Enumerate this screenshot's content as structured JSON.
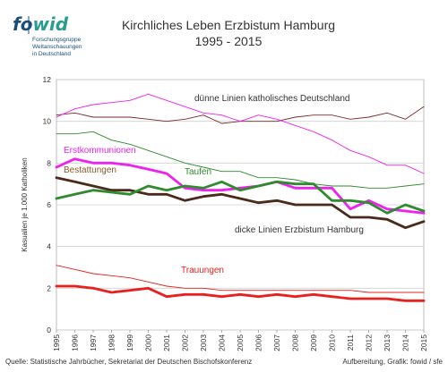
{
  "logo": {
    "word": "fowid",
    "sub1": "Forschungsgruppe",
    "sub2": "Weltanschauungen",
    "sub3": "in Deutschland",
    "color_blue": "#1a4e7a",
    "color_teal": "#2a9d8f"
  },
  "title_line1": "Kirchliches Leben Erzbistum Hamburg",
  "title_line2": "1995 - 2015",
  "source": "Quelle: Statistische Jahrbücher, Sekretariat der Deutschen Bischofskonferenz",
  "credit": "Aufbereitung, Grafik: fowid / sfe",
  "chart_data": {
    "type": "line",
    "x": [
      1995,
      1996,
      1997,
      1998,
      1999,
      2000,
      2001,
      2002,
      2003,
      2004,
      2005,
      2006,
      2007,
      2008,
      2009,
      2010,
      2011,
      2012,
      2013,
      2014,
      2015
    ],
    "ylabel": "Kasualien je 1.000 Katholiken",
    "ylim": [
      0,
      12
    ],
    "yticks": [
      0,
      2,
      4,
      6,
      8,
      10,
      12
    ],
    "grid": true,
    "annotations": [
      {
        "text": "dünne Linien katholisches Deutschland",
        "color": "#333333"
      },
      {
        "text": "Erstkommunionen",
        "color": "#ee22ee"
      },
      {
        "text": "Bestattungen",
        "color": "#8a5a2a"
      },
      {
        "text": "Taufen",
        "color": "#2e8b2e"
      },
      {
        "text": "dicke Linien Erzbistum Hamburg",
        "color": "#333333"
      },
      {
        "text": "Trauungen",
        "color": "#e8201e"
      }
    ],
    "series": [
      {
        "key": "de_bestattungen",
        "color": "#7a2a2a",
        "thick": false,
        "values": [
          10.3,
          10.4,
          10.2,
          10.2,
          10.2,
          10.1,
          10.0,
          10.1,
          10.3,
          9.9,
          10.0,
          10.0,
          10.0,
          10.2,
          10.3,
          10.3,
          10.1,
          10.2,
          10.4,
          10.1,
          10.7
        ]
      },
      {
        "key": "de_erstkommunionen",
        "color": "#ee22ee",
        "thick": false,
        "values": [
          10.2,
          10.6,
          10.8,
          10.9,
          11.0,
          11.3,
          11.0,
          10.7,
          10.4,
          10.3,
          10.0,
          10.3,
          10.1,
          9.8,
          9.5,
          9.1,
          8.6,
          8.3,
          7.9,
          7.9,
          7.5
        ]
      },
      {
        "key": "de_taufen",
        "color": "#2e8b2e",
        "thick": false,
        "values": [
          9.4,
          9.4,
          9.5,
          9.1,
          8.9,
          8.6,
          8.3,
          8.0,
          7.8,
          7.6,
          7.6,
          7.3,
          7.3,
          7.2,
          7.0,
          6.9,
          6.9,
          6.8,
          6.8,
          6.9,
          7.0
        ]
      },
      {
        "key": "de_trauungen",
        "color": "#e8201e",
        "thick": false,
        "values": [
          3.1,
          2.9,
          2.7,
          2.6,
          2.5,
          2.3,
          2.1,
          2.0,
          2.0,
          1.9,
          1.9,
          1.9,
          1.9,
          1.9,
          1.9,
          1.9,
          1.9,
          1.8,
          1.8,
          1.8,
          1.8
        ]
      },
      {
        "key": "hh_bestattungen",
        "color": "#4a2a1a",
        "thick": true,
        "values": [
          7.3,
          7.1,
          6.9,
          6.7,
          6.7,
          6.5,
          6.5,
          6.2,
          6.4,
          6.5,
          6.3,
          6.1,
          6.2,
          6.0,
          6.0,
          6.0,
          5.4,
          5.4,
          5.3,
          4.9,
          5.2
        ]
      },
      {
        "key": "hh_erstkommunionen",
        "color": "#ee22ee",
        "thick": true,
        "values": [
          7.8,
          8.2,
          8.0,
          8.0,
          7.9,
          7.7,
          7.5,
          6.8,
          6.7,
          6.7,
          6.8,
          6.9,
          7.1,
          6.8,
          6.8,
          6.8,
          5.8,
          6.2,
          5.8,
          5.7,
          5.6
        ]
      },
      {
        "key": "hh_taufen",
        "color": "#2e8b2e",
        "thick": true,
        "values": [
          6.3,
          6.5,
          6.7,
          6.6,
          6.5,
          6.9,
          6.7,
          6.9,
          6.8,
          7.1,
          6.7,
          6.9,
          7.1,
          7.0,
          7.0,
          6.2,
          6.2,
          6.1,
          5.6,
          6.0,
          5.7
        ]
      },
      {
        "key": "hh_trauungen",
        "color": "#e8201e",
        "thick": true,
        "values": [
          2.1,
          2.1,
          2.0,
          1.8,
          1.9,
          2.0,
          1.6,
          1.7,
          1.7,
          1.6,
          1.7,
          1.6,
          1.7,
          1.6,
          1.7,
          1.6,
          1.5,
          1.5,
          1.5,
          1.4,
          1.4
        ]
      }
    ]
  }
}
